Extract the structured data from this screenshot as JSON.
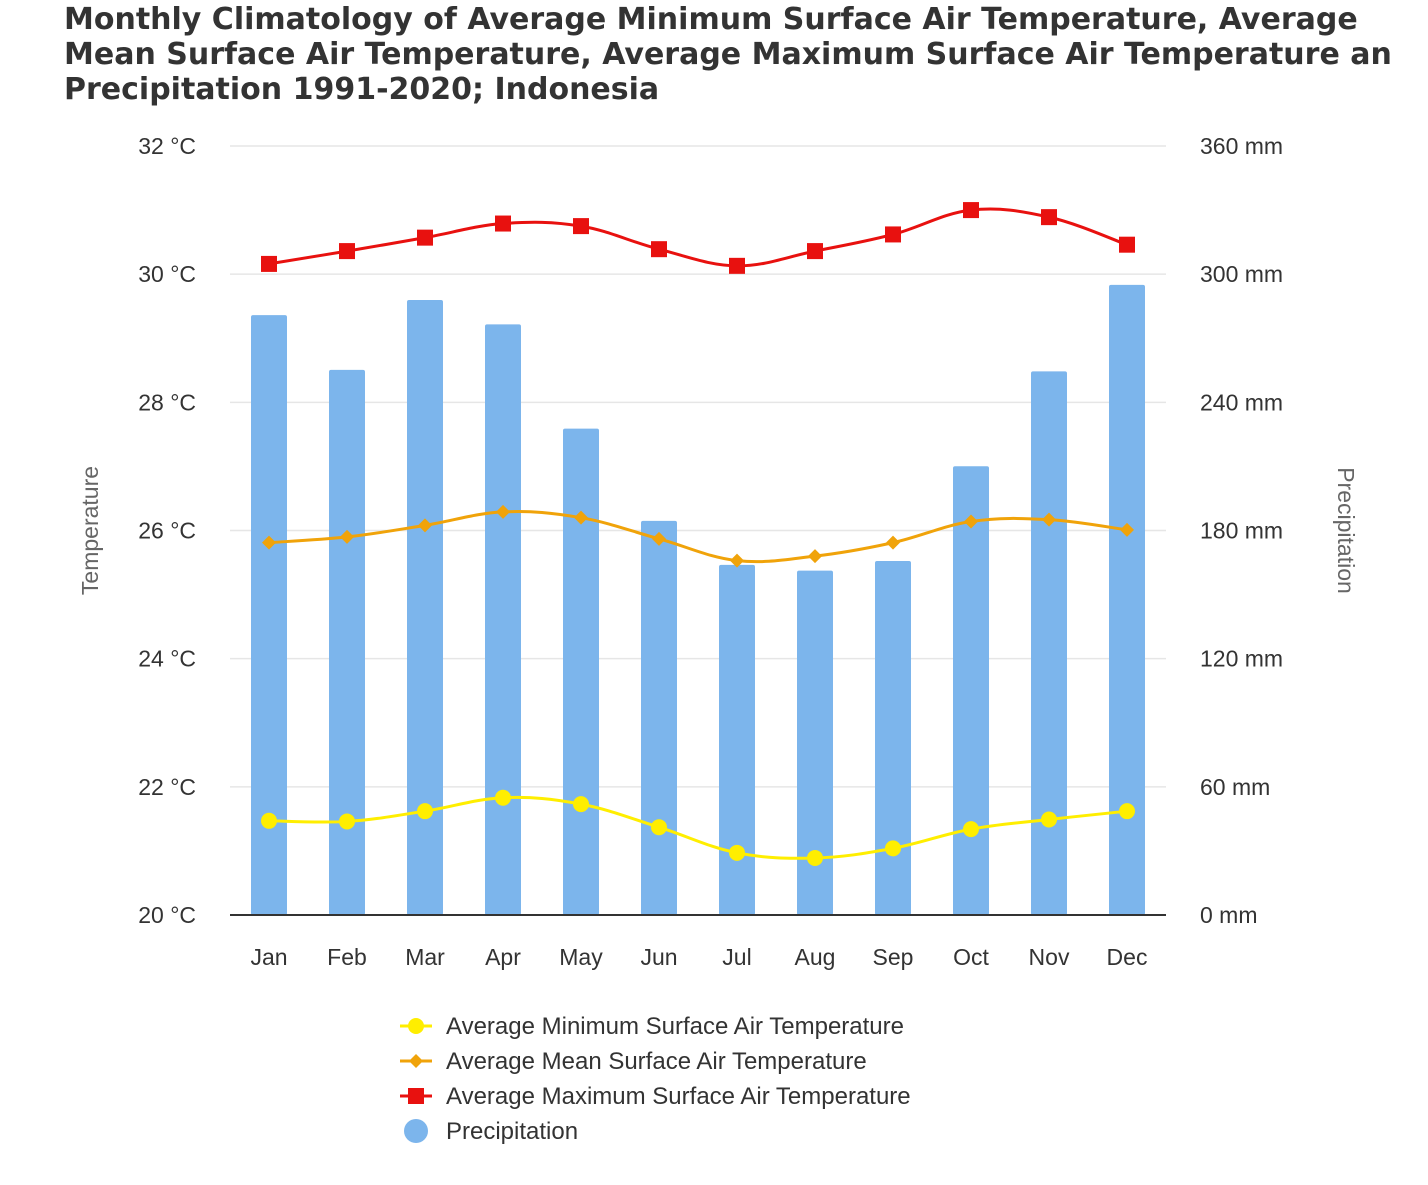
{
  "chart_data": {
    "type": "bar",
    "title": [
      "Monthly Climatology of Average Minimum Surface Air Temperature, Average",
      "Mean Surface Air Temperature, Average Maximum Surface Air Temperature and",
      "Precipitation 1991-2020; Indonesia"
    ],
    "categories": [
      "Jan",
      "Feb",
      "Mar",
      "Apr",
      "May",
      "Jun",
      "Jul",
      "Aug",
      "Sep",
      "Oct",
      "Nov",
      "Dec"
    ],
    "y_left": {
      "label": "Temperature",
      "unit": "°C",
      "range": [
        20,
        32
      ],
      "ticks": [
        "20 °C",
        "22 °C",
        "24 °C",
        "26 °C",
        "28 °C",
        "30 °C",
        "32 °C"
      ]
    },
    "y_right": {
      "label": "Precipitation",
      "unit": "mm",
      "range": [
        0,
        360
      ],
      "ticks": [
        "0 mm",
        "60 mm",
        "120 mm",
        "180 mm",
        "240 mm",
        "300 mm",
        "360 mm"
      ]
    },
    "series": [
      {
        "name": "Average Minimum Surface Air Temperature",
        "type": "line",
        "axis": "left",
        "color": "#ffee00",
        "marker": "circle",
        "values": [
          21.47,
          21.46,
          21.62,
          21.83,
          21.73,
          21.37,
          20.97,
          20.89,
          21.04,
          21.34,
          21.49,
          21.62
        ]
      },
      {
        "name": "Average Mean Surface Air Temperature",
        "type": "line",
        "axis": "left",
        "color": "#f0a30a",
        "marker": "diamond",
        "values": [
          25.81,
          25.9,
          26.08,
          26.29,
          26.2,
          25.87,
          25.53,
          25.6,
          25.81,
          26.14,
          26.17,
          26.01
        ]
      },
      {
        "name": "Average Maximum Surface Air Temperature",
        "type": "line",
        "axis": "left",
        "color": "#e8110f",
        "marker": "square",
        "values": [
          30.16,
          30.36,
          30.57,
          30.79,
          30.75,
          30.39,
          30.13,
          30.36,
          30.62,
          31.0,
          30.89,
          30.46
        ]
      },
      {
        "name": "Precipitation",
        "type": "bar",
        "axis": "right",
        "color": "#7cb5ec",
        "marker": "circle",
        "values": [
          280.8,
          255.2,
          287.9,
          276.5,
          227.7,
          184.5,
          163.9,
          161.2,
          165.7,
          210.1,
          254.5,
          295.0
        ]
      }
    ],
    "grid": true,
    "legend_position": "bottom"
  }
}
